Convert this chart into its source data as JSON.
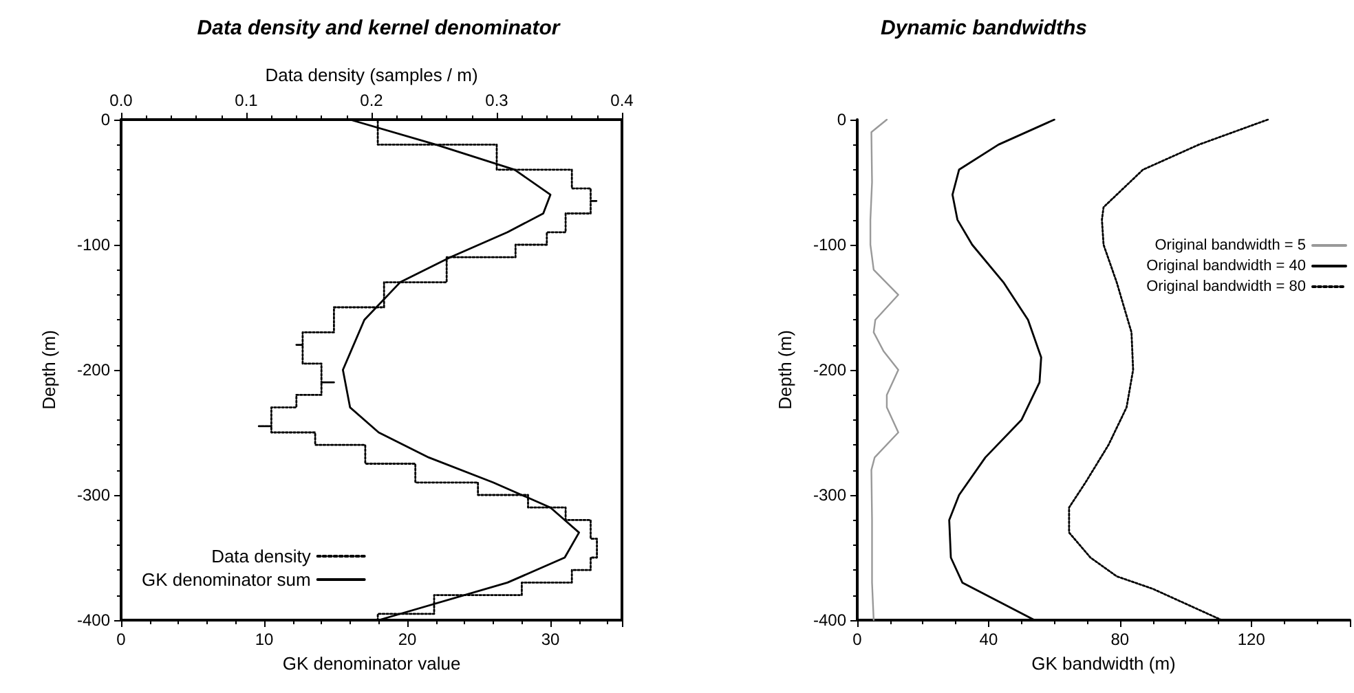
{
  "chart_data": [
    {
      "type": "line",
      "title": "Data density and kernel denominator",
      "xlabel": "GK denominator value",
      "x2label": "Data density (samples / m)",
      "ylabel": "Depth (m)",
      "xlim": [
        0,
        35
      ],
      "xticks": [
        0,
        10,
        20,
        30
      ],
      "x2lim": [
        0,
        0.4
      ],
      "x2ticks": [
        {
          "value": 0,
          "label": "0.0"
        },
        {
          "value": 0.1,
          "label": "0.1"
        },
        {
          "value": 0.2,
          "label": "0.2"
        },
        {
          "value": 0.3,
          "label": "0.3"
        },
        {
          "value": 0.4,
          "label": "0.4"
        }
      ],
      "ylim": [
        -400,
        0
      ],
      "yticks": [
        -400,
        -300,
        -200,
        -100,
        0
      ],
      "legend": "bottom left",
      "marker": "none",
      "series": [
        {
          "name": "Data density",
          "type": "step",
          "axis": "x2",
          "color": "#000000",
          "line_style": "dotted",
          "x": [
            0.16,
            0.25,
            0.35,
            0.37,
            0.38,
            0.37,
            0.34,
            0.34,
            0.29,
            0.23,
            0.19,
            0.15,
            0.14,
            0.15,
            0.17,
            0.15,
            0.13,
            0.11,
            0.13,
            0.18,
            0.21,
            0.26,
            0.31,
            0.34,
            0.37,
            0.38,
            0.38,
            0.37,
            0.35,
            0.29,
            0.21,
            0.2
          ],
          "values": [
            0,
            -20,
            -40,
            -55,
            -65,
            -75,
            -90,
            -100,
            -110,
            -130,
            -150,
            -170,
            -180,
            -195,
            -210,
            -220,
            -230,
            -245,
            -250,
            -260,
            -275,
            -290,
            -300,
            -310,
            -320,
            -335,
            -350,
            -360,
            -370,
            -380,
            -395,
            -400
          ]
        },
        {
          "name": "GK denominator sum",
          "color": "#000000",
          "line_style": "solid",
          "x": [
            16,
            22,
            27.5,
            30,
            29.5,
            27,
            23,
            19.5,
            17,
            15.5,
            16,
            18,
            21.5,
            26,
            30,
            32,
            31,
            27,
            18
          ],
          "values": [
            0,
            -20,
            -40,
            -60,
            -75,
            -90,
            -110,
            -130,
            -160,
            -200,
            -230,
            -250,
            -270,
            -290,
            -310,
            -330,
            -350,
            -370,
            -400
          ]
        }
      ]
    },
    {
      "type": "line",
      "title": "Dynamic bandwidths",
      "xlabel": "GK bandwidth (m)",
      "ylabel": "Depth (m)",
      "xlim": [
        0,
        150
      ],
      "xticks": [
        0,
        40,
        80,
        120
      ],
      "ylim": [
        -400,
        0
      ],
      "yticks": [
        -400,
        -300,
        -200,
        -100,
        0
      ],
      "legend": "right",
      "marker": "none",
      "series": [
        {
          "name": "Original bandwidth = 5",
          "color": "#999999",
          "line_style": "solid",
          "x": [
            9,
            4.3,
            4.5,
            4,
            4,
            5,
            12.5,
            5.5,
            5,
            8,
            12.5,
            9,
            9,
            12.5,
            5.3,
            4.3,
            4.5,
            4.5,
            5
          ],
          "values": [
            0,
            -10,
            -50,
            -80,
            -100,
            -120,
            -140,
            -160,
            -170,
            -185,
            -200,
            -220,
            -230,
            -250,
            -270,
            -280,
            -320,
            -370,
            -400
          ]
        },
        {
          "name": "Original bandwidth = 40",
          "color": "#000000",
          "line_style": "solid",
          "x": [
            60,
            43,
            31,
            29,
            30.5,
            35,
            44.5,
            52,
            56,
            55.5,
            50,
            39,
            31,
            28,
            28.5,
            32,
            43,
            54
          ],
          "values": [
            0,
            -20,
            -40,
            -60,
            -80,
            -100,
            -130,
            -160,
            -190,
            -210,
            -240,
            -270,
            -300,
            -320,
            -350,
            -370,
            -385,
            -400
          ]
        },
        {
          "name": "Original bandwidth = 80",
          "color": "#000000",
          "line_style": "dotted",
          "x": [
            125,
            104,
            87,
            75,
            74.5,
            75,
            79,
            83.5,
            84,
            82,
            76.5,
            69.5,
            64.5,
            64.5,
            71,
            79,
            90,
            111
          ],
          "values": [
            0,
            -20,
            -40,
            -70,
            -80,
            -100,
            -130,
            -170,
            -200,
            -230,
            -260,
            -290,
            -310,
            -330,
            -350,
            -365,
            -375,
            -400
          ]
        }
      ]
    }
  ]
}
